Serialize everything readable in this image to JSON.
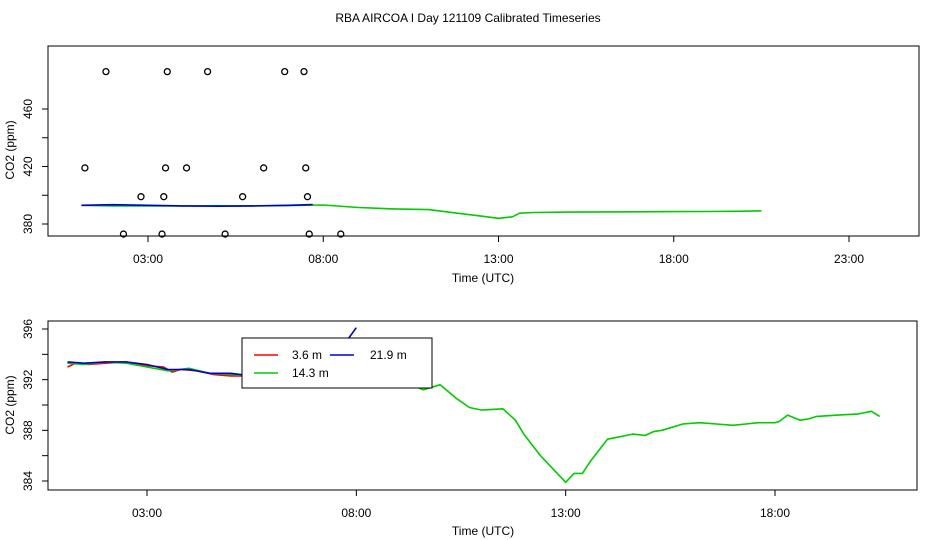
{
  "page_title": "RBA AIRCOA I  Day 121109  Calibrated Timeseries",
  "chart_data": [
    {
      "type": "scatter",
      "xlabel": "Time (UTC)",
      "ylabel": "CO2 (ppm)",
      "xlim": [
        0,
        25
      ],
      "ylim": [
        370,
        488
      ],
      "x_ticks": [
        3,
        8,
        13,
        18,
        23
      ],
      "x_tick_labels": [
        "03:00",
        "08:00",
        "13:00",
        "18:00",
        "23:00"
      ],
      "y_ticks": [
        380,
        400,
        420,
        440,
        460
      ],
      "y_tick_labels": [
        "380",
        "",
        "420",
        "",
        "460"
      ],
      "grid": false,
      "colors": {
        "points": "#000000",
        "green": "#00cc00",
        "blue": "#0000cc"
      },
      "points": [
        [
          1.2,
          419
        ],
        [
          1.8,
          486
        ],
        [
          2.3,
          373
        ],
        [
          2.8,
          399
        ],
        [
          3.4,
          373
        ],
        [
          3.45,
          399
        ],
        [
          3.5,
          419
        ],
        [
          3.55,
          486
        ],
        [
          4.1,
          419
        ],
        [
          4.7,
          486
        ],
        [
          5.2,
          373
        ],
        [
          5.7,
          399
        ],
        [
          6.3,
          419
        ],
        [
          6.9,
          486
        ],
        [
          7.45,
          486
        ],
        [
          7.5,
          419
        ],
        [
          7.55,
          399
        ],
        [
          7.6,
          373
        ],
        [
          8.5,
          373
        ]
      ],
      "series": [
        {
          "color": "#00cc00",
          "x": [
            1.1,
            2,
            3,
            4,
            5,
            6,
            7,
            8,
            9,
            10,
            11,
            12,
            12.5,
            13,
            13.4,
            13.6,
            14,
            15,
            16,
            17,
            18,
            19,
            20,
            20.5
          ],
          "y": [
            393,
            392.5,
            392.6,
            392.5,
            392.7,
            392.6,
            392.8,
            393.2,
            391.5,
            390.5,
            390,
            387,
            385.5,
            384,
            385,
            387.5,
            388,
            388.3,
            388.4,
            388.5,
            388.6,
            388.7,
            388.9,
            389.2
          ]
        },
        {
          "color": "#0000cc",
          "x": [
            1.1,
            2,
            3,
            4,
            5,
            6,
            7,
            7.7
          ],
          "y": [
            393,
            393.4,
            393,
            392.6,
            392.4,
            392.6,
            393,
            393.5
          ]
        }
      ]
    },
    {
      "type": "line",
      "xlabel": "Time (UTC)",
      "ylabel": "CO2 (ppm)",
      "xlim": [
        0,
        20.8
      ],
      "ylim": [
        383.7,
        396.1
      ],
      "x_ticks": [
        3,
        8,
        13,
        18
      ],
      "x_tick_labels": [
        "03:00",
        "08:00",
        "13:00",
        "18:00"
      ],
      "y_ticks": [
        384,
        386,
        388,
        390,
        392,
        394,
        396
      ],
      "y_tick_labels": [
        "384",
        "",
        "388",
        "",
        "392",
        "",
        "396"
      ],
      "grid": false,
      "legend": {
        "placement": "top-center",
        "entries": [
          {
            "label": "3.6 m",
            "color": "#ff0000"
          },
          {
            "label": "14.3 m",
            "color": "#00cc00"
          },
          {
            "label": "21.9 m",
            "color": "#0000cc"
          }
        ]
      },
      "series": [
        {
          "name": "3.6 m",
          "color": "#ff0000",
          "x": [
            1.1,
            1.3,
            1.6,
            2,
            2.5,
            3,
            3.4,
            3.6,
            3.8,
            4.2,
            4.6,
            5,
            5.4,
            5.8,
            6.2,
            6.6,
            7,
            7.4,
            7.8,
            8.2
          ],
          "y": [
            393,
            393.3,
            393.2,
            393.3,
            393.4,
            393.1,
            393,
            392.6,
            392.8,
            392.7,
            392.4,
            392.3,
            392.3,
            392.5,
            392.4,
            393.1,
            393.2,
            393.4,
            393.5,
            393.6
          ]
        },
        {
          "name": "14.3 m",
          "color": "#00cc00",
          "x": [
            1.1,
            1.5,
            2,
            2.5,
            3,
            3.5,
            4,
            4.5,
            5,
            5.5,
            6,
            6.5,
            7,
            7.5,
            8,
            8.3,
            8.6,
            9,
            9.3,
            9.6,
            10,
            10.4,
            10.7,
            11,
            11.5,
            11.8,
            12,
            12.4,
            12.8,
            13,
            13.2,
            13.4,
            13.6,
            14,
            14.3,
            14.6,
            14.9,
            15.1,
            15.3,
            15.5,
            15.8,
            16.2,
            16.6,
            17,
            17.3,
            17.6,
            18,
            18.1,
            18.3,
            18.6,
            18.8,
            19,
            19.5,
            20,
            20.3,
            20.5
          ],
          "y": [
            393.3,
            393.2,
            393.4,
            393.3,
            393,
            392.7,
            392.9,
            392.5,
            392.4,
            392.3,
            392.4,
            392.7,
            393.2,
            393.5,
            393.7,
            393.4,
            393,
            392.6,
            391.6,
            391.2,
            391.6,
            390.5,
            389.8,
            389.6,
            389.7,
            388.8,
            387.7,
            386,
            384.6,
            383.9,
            384.6,
            384.6,
            385.6,
            387.3,
            387.5,
            387.7,
            387.6,
            387.9,
            388,
            388.2,
            388.5,
            388.6,
            388.5,
            388.4,
            388.5,
            388.6,
            388.6,
            388.7,
            389.2,
            388.8,
            388.9,
            389.1,
            389.2,
            389.3,
            389.5,
            389.1
          ],
          "yfix": true
        },
        {
          "name": "21.9 m",
          "color": "#0000cc",
          "x": [
            1.1,
            1.5,
            2,
            2.5,
            3,
            3.5,
            4,
            4.5,
            5,
            5.5,
            6,
            6.5,
            7,
            7.3,
            7.6,
            7.8,
            8
          ],
          "y": [
            393.4,
            393.3,
            393.4,
            393.4,
            393.2,
            392.8,
            392.8,
            392.5,
            392.5,
            392.3,
            392.5,
            392.8,
            393.3,
            393.8,
            394.5,
            395.2,
            396.1
          ]
        }
      ]
    }
  ]
}
